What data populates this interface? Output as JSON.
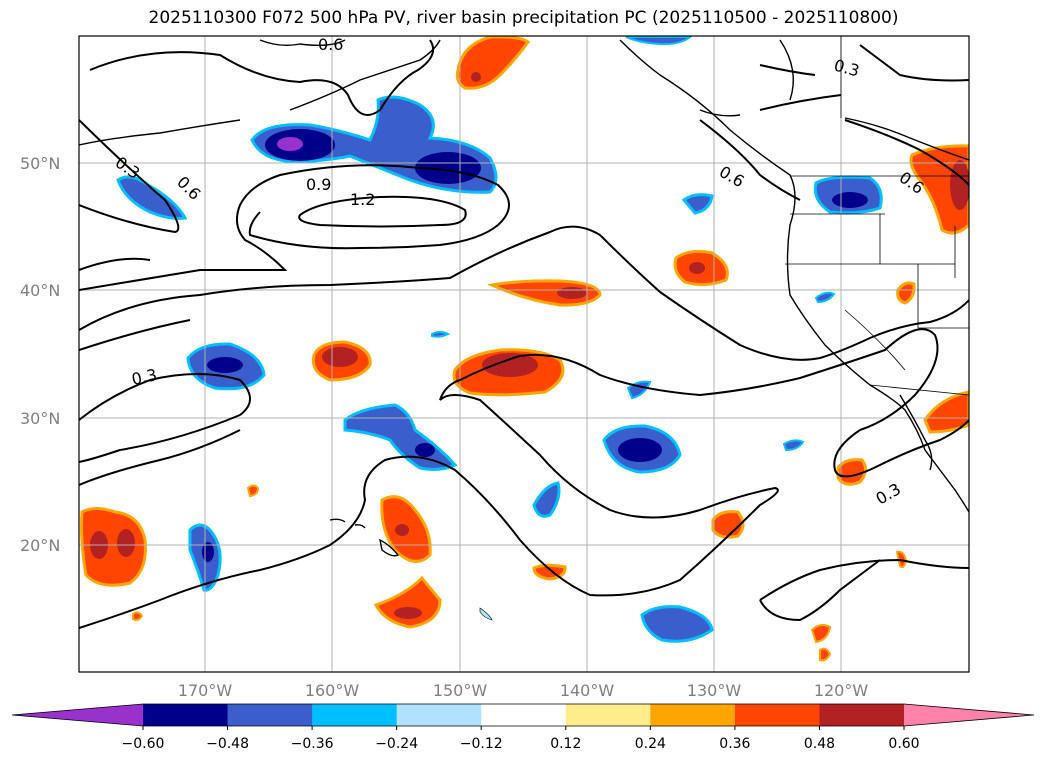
{
  "title": "2025110300 F072 500 hPa PV, river basin precipitation PC (2025110500 - 2025110800)",
  "lat_labels": [
    "50°N",
    "40°N",
    "30°N",
    "20°N"
  ],
  "lon_labels": [
    "170°W",
    "160°W",
    "150°W",
    "140°W",
    "130°W",
    "120°W"
  ],
  "contour_labels": [
    "0.6",
    "0.3",
    "0.6",
    "0.9",
    "1.2",
    "0.6",
    "0.6",
    "0.3",
    "0.3",
    "0.3"
  ],
  "colorbar": {
    "ticks": [
      "−0.60",
      "−0.48",
      "−0.36",
      "−0.24",
      "−0.12",
      "0.12",
      "0.24",
      "0.36",
      "0.48",
      "0.60"
    ],
    "colors": [
      "#9932cc",
      "#00008b",
      "#3a5fcd",
      "#00bfff",
      "#b0e2ff",
      "#ffffff",
      "#ffec8b",
      "#ffa500",
      "#ff4500",
      "#b22222",
      "#ff82ab"
    ]
  },
  "colors": {
    "coast": "#000000",
    "grid": "#b0b0b0"
  }
}
